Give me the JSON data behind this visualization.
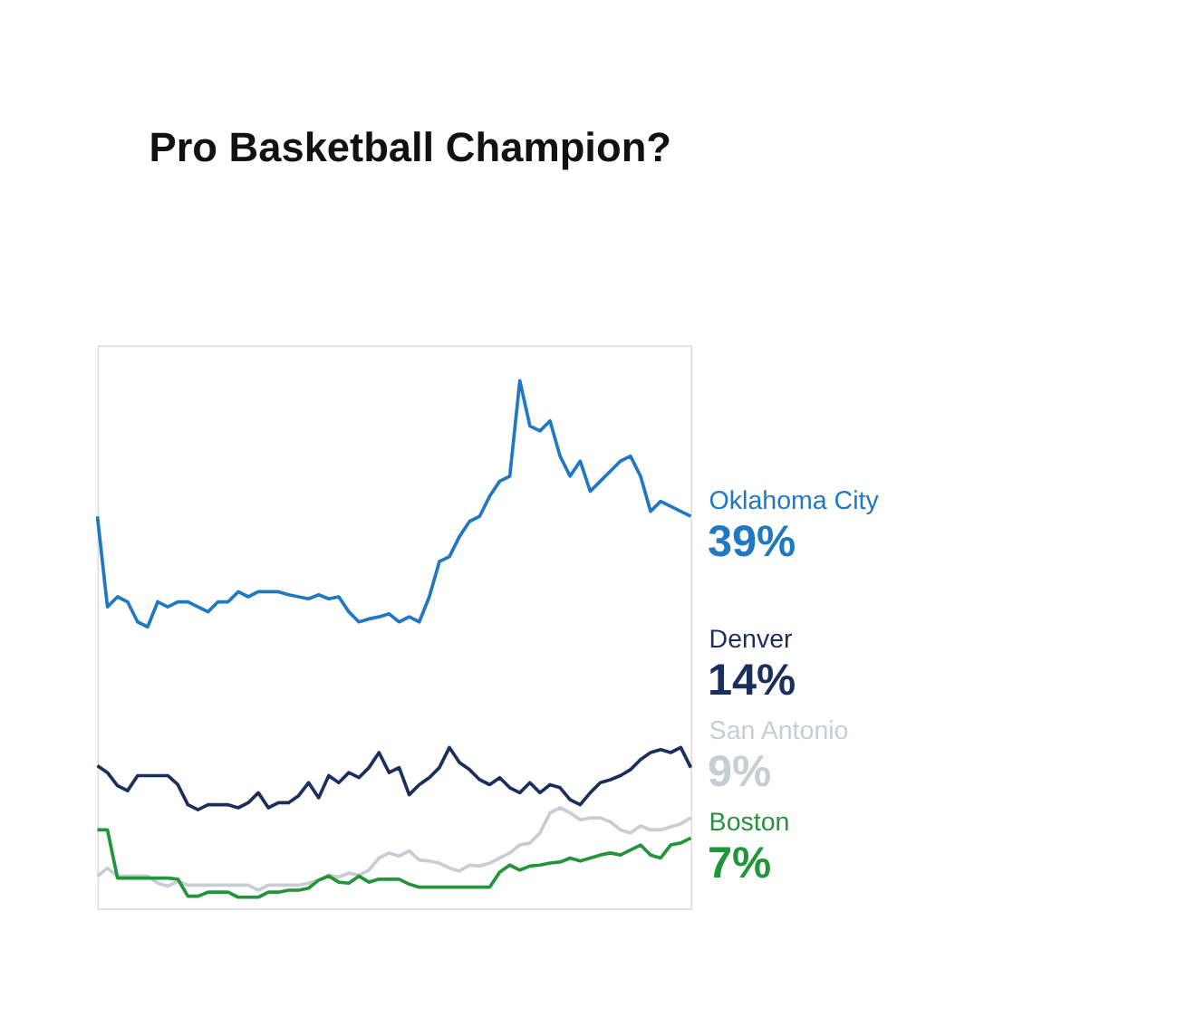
{
  "chart_data": {
    "type": "line",
    "title": "Pro Basketball Champion?",
    "categories": [
      null,
      null,
      null,
      null,
      null,
      null,
      null,
      null,
      null,
      null,
      null,
      null,
      null,
      null,
      null,
      null,
      null,
      null,
      null,
      null,
      null,
      null,
      null,
      null,
      null,
      null,
      null,
      null,
      null,
      null,
      null,
      null,
      null,
      null,
      null,
      null,
      null,
      null,
      null,
      null,
      null,
      null,
      null,
      null,
      null,
      null,
      null,
      null,
      null,
      null,
      null,
      null,
      null,
      null,
      null,
      null,
      null,
      null,
      null,
      null
    ],
    "ylim": [
      0,
      56
    ],
    "legend": false,
    "tick_labels": false,
    "series": [
      {
        "name": "Oklahoma City",
        "color": "#1f78c1",
        "values": [
          39,
          30,
          31,
          30.5,
          28.5,
          28,
          30.5,
          30,
          30.5,
          30.5,
          30,
          29.5,
          30.5,
          30.5,
          31.5,
          31,
          31.5,
          31.5,
          31.5,
          31.2,
          31,
          30.8,
          31.2,
          30.8,
          31,
          29.5,
          28.5,
          28.8,
          29,
          29.3,
          28.5,
          29,
          28.5,
          31,
          34.5,
          35,
          37,
          38.5,
          39,
          41,
          42.5,
          43,
          52.5,
          48,
          47.5,
          48.5,
          45,
          43,
          44.5,
          41.5,
          42.5,
          43.5,
          44.5,
          45,
          43,
          39.5,
          40.5,
          40,
          39.5,
          39
        ],
        "value_labels": [
          null,
          null,
          null,
          null,
          null,
          null,
          null,
          null,
          null,
          null,
          null,
          null,
          null,
          null,
          null,
          null,
          null,
          null,
          null,
          null,
          null,
          null,
          null,
          null,
          null,
          null,
          null,
          null,
          null,
          null,
          null,
          null,
          null,
          null,
          null,
          null,
          null,
          null,
          null,
          null,
          null,
          null,
          null,
          null,
          null,
          null,
          null,
          null,
          null,
          null,
          null,
          null,
          null,
          null,
          null,
          null,
          null,
          null,
          null,
          "39%"
        ]
      },
      {
        "name": "Denver",
        "color": "#1b2f5e",
        "values": [
          14.2,
          13.5,
          12.2,
          11.7,
          13.2,
          13.2,
          13.2,
          13.2,
          12.3,
          10.3,
          9.8,
          10.3,
          10.3,
          10.3,
          10,
          10.5,
          11.5,
          10,
          10.5,
          10.5,
          11.2,
          12.5,
          11,
          13.2,
          12.5,
          13.5,
          13,
          14,
          15.5,
          13.5,
          14,
          11.3,
          12.3,
          13,
          14,
          16,
          14.5,
          13.8,
          12.8,
          12.3,
          13,
          12,
          11.5,
          12.5,
          11.5,
          12.3,
          12,
          10.8,
          10.3,
          11.5,
          12.5,
          12.8,
          13.2,
          13.8,
          14.8,
          15.5,
          15.8,
          15.5,
          16,
          14
        ],
        "value_labels": [
          null,
          null,
          null,
          null,
          null,
          null,
          null,
          null,
          null,
          null,
          null,
          null,
          null,
          null,
          null,
          null,
          null,
          null,
          null,
          null,
          null,
          null,
          null,
          null,
          null,
          null,
          null,
          null,
          null,
          null,
          null,
          null,
          null,
          null,
          null,
          null,
          null,
          null,
          null,
          null,
          null,
          null,
          null,
          null,
          null,
          null,
          null,
          null,
          null,
          null,
          null,
          null,
          null,
          null,
          null,
          null,
          null,
          null,
          null,
          "14%"
        ]
      },
      {
        "name": "San Antonio",
        "color": "#c8ccd3",
        "values": [
          3.2,
          4,
          3.2,
          3.2,
          3.2,
          3.2,
          2.5,
          2.2,
          2.7,
          2.3,
          2.3,
          2.3,
          2.3,
          2.3,
          2.3,
          2.3,
          1.8,
          2.3,
          2.3,
          2.3,
          2.3,
          2.5,
          2.8,
          3.3,
          3.1,
          3.5,
          3.3,
          3.8,
          5,
          5.5,
          5.2,
          5.7,
          4.8,
          4.7,
          4.5,
          4,
          3.7,
          4.3,
          4.2,
          4.5,
          5,
          5.5,
          6.3,
          6.5,
          7.5,
          9.5,
          10,
          9.5,
          8.8,
          9,
          9,
          8.6,
          7.8,
          7.5,
          8.2,
          7.8,
          7.8,
          8.1,
          8.4,
          9
        ],
        "value_labels": [
          null,
          null,
          null,
          null,
          null,
          null,
          null,
          null,
          null,
          null,
          null,
          null,
          null,
          null,
          null,
          null,
          null,
          null,
          null,
          null,
          null,
          null,
          null,
          null,
          null,
          null,
          null,
          null,
          null,
          null,
          null,
          null,
          null,
          null,
          null,
          null,
          null,
          null,
          null,
          null,
          null,
          null,
          null,
          null,
          null,
          null,
          null,
          null,
          null,
          null,
          null,
          null,
          null,
          null,
          null,
          null,
          null,
          null,
          null,
          "9%"
        ]
      },
      {
        "name": "Boston",
        "color": "#22943a",
        "values": [
          7.8,
          7.8,
          3,
          3,
          3,
          3,
          3,
          3,
          2.9,
          1.2,
          1.2,
          1.6,
          1.6,
          1.6,
          1.1,
          1.1,
          1.1,
          1.6,
          1.6,
          1.8,
          1.8,
          2,
          2.8,
          3.2,
          2.6,
          2.5,
          3.2,
          2.6,
          2.9,
          2.9,
          2.9,
          2.4,
          2.1,
          2.1,
          2.1,
          2.1,
          2.1,
          2.1,
          2.1,
          2.1,
          3.6,
          4.3,
          3.8,
          4.2,
          4.3,
          4.5,
          4.6,
          5,
          4.7,
          5,
          5.3,
          5.5,
          5.3,
          5.8,
          6.3,
          5.3,
          5,
          6.3,
          6.5,
          7
        ],
        "value_labels": [
          null,
          null,
          null,
          null,
          null,
          null,
          null,
          null,
          null,
          null,
          null,
          null,
          null,
          null,
          null,
          null,
          null,
          null,
          null,
          null,
          null,
          null,
          null,
          null,
          null,
          null,
          null,
          null,
          null,
          null,
          null,
          null,
          null,
          null,
          null,
          null,
          null,
          null,
          null,
          null,
          null,
          null,
          null,
          null,
          null,
          null,
          null,
          null,
          null,
          null,
          null,
          null,
          null,
          null,
          null,
          null,
          null,
          null,
          null,
          "7%"
        ]
      }
    ]
  }
}
